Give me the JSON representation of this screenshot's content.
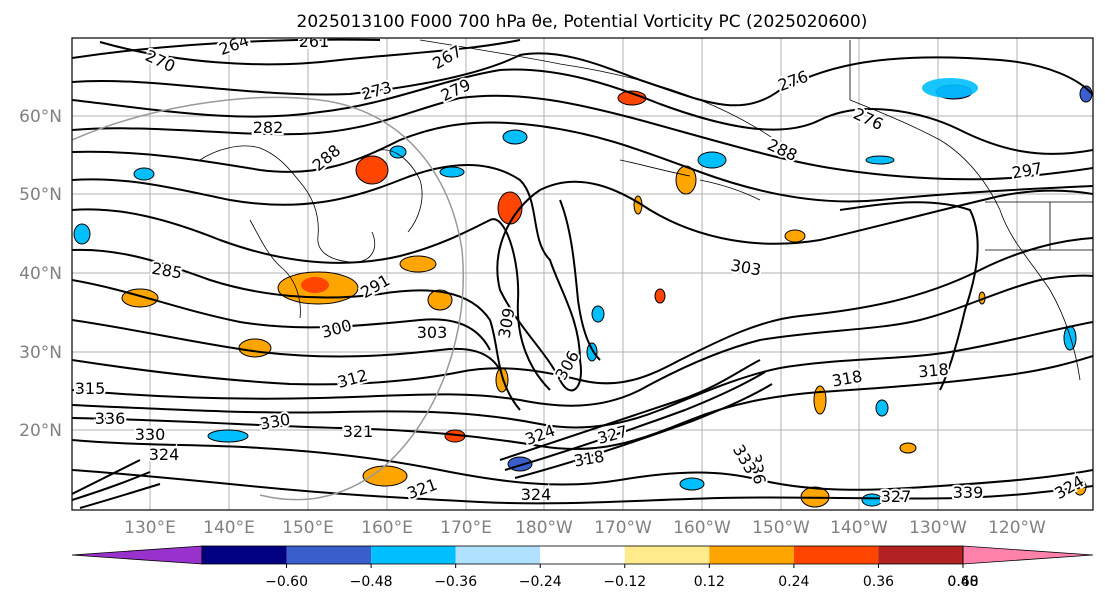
{
  "title": "2025013100 F000 700 hPa θe, Potential Vorticity PC (2025020600)",
  "lat_labels": [
    "60°N",
    "50°N",
    "40°N",
    "30°N",
    "20°N"
  ],
  "lon_labels": [
    "130°E",
    "140°E",
    "150°E",
    "160°E",
    "170°E",
    "180°W",
    "170°W",
    "160°W",
    "150°W",
    "140°W",
    "130°W",
    "120°W"
  ],
  "contour_labels": [
    "264",
    "261",
    "267",
    "270",
    "273",
    "279",
    "276",
    "282",
    "288",
    "276",
    "288",
    "297",
    "285",
    "291",
    "303",
    "300",
    "303",
    "309",
    "306",
    "312",
    "315",
    "318",
    "318",
    "321",
    "330",
    "324",
    "327",
    "336",
    "333",
    "330",
    "336",
    "324",
    "321",
    "318",
    "324",
    "327",
    "339",
    "324"
  ],
  "colorbar": {
    "ticks": [
      "−0.60",
      "−0.48",
      "−0.36",
      "−0.24",
      "−0.12",
      "0.12",
      "0.24",
      "0.36",
      "0.48",
      "0.60"
    ],
    "colors": [
      "#9932cc",
      "#000080",
      "#3a5fcd",
      "#00bfff",
      "#b0e2ff",
      "#ffffff",
      "#ffeb8c",
      "#ffa500",
      "#ff4500",
      "#b22222",
      "#ff82ab"
    ]
  }
}
